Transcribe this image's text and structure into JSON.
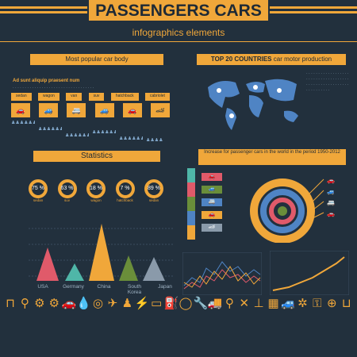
{
  "header": {
    "title": "PASSENGERS CARS",
    "subtitle": "infographics elements"
  },
  "sections": {
    "car_body": {
      "heading": "Most popular car body",
      "blurb": "Ad sunt aliquip praesent num",
      "types": [
        "sedan",
        "wagon",
        "van",
        "suv",
        "hatchback",
        "cabriolet"
      ]
    },
    "countries": {
      "heading_bold": "TOP 20 COUNTRIES",
      "heading_rest": " car motor production"
    },
    "statistics": {
      "heading": "Statistics",
      "donuts": [
        {
          "value": "75 %",
          "label": "sedan"
        },
        {
          "value": "63 %",
          "label": "suv"
        },
        {
          "value": "18 %",
          "label": "wagon"
        },
        {
          "value": "7 %",
          "label": "hatchback"
        },
        {
          "value": "89 %",
          "label": "sedan"
        }
      ],
      "pyramids": [
        {
          "label": "USA",
          "color": "#e05a6a"
        },
        {
          "label": "Germany",
          "color": "#4fb6a8"
        },
        {
          "label": "China",
          "color": "#f0a73a"
        },
        {
          "label": "South Korea",
          "color": "#6a8e3a"
        },
        {
          "label": "Japan",
          "color": "#8a9aaa"
        }
      ]
    },
    "increase": {
      "heading": "Increase for passenger cars in the world in the period 1950-2012"
    }
  },
  "colors": {
    "background": "#22303d",
    "accent": "#f0a73a",
    "map": "#4f84c4"
  }
}
